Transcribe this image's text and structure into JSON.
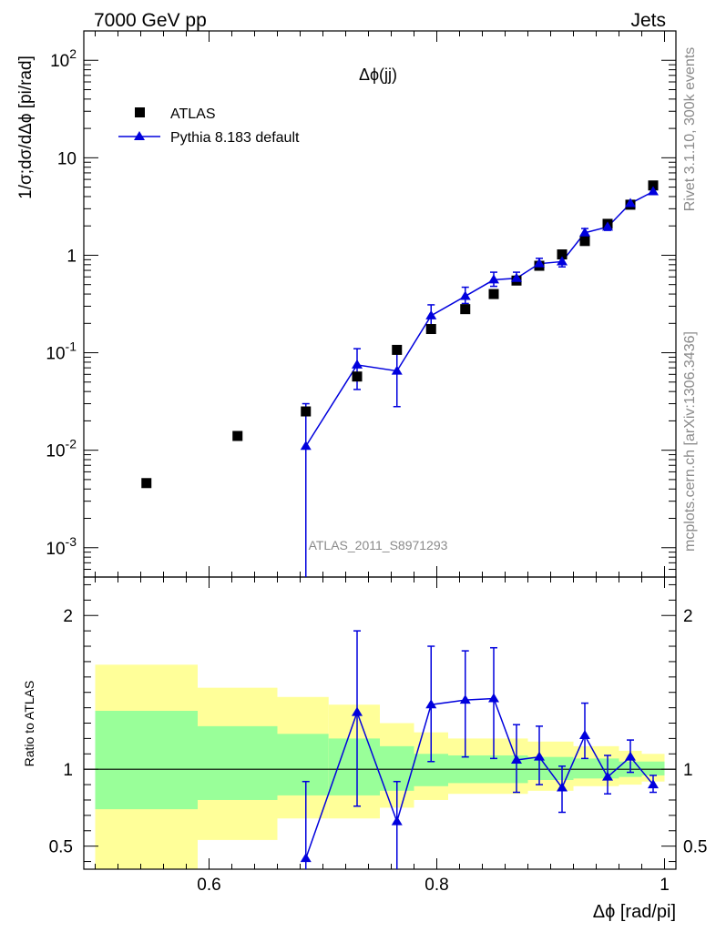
{
  "header": {
    "left": "7000 GeV pp",
    "right": "Jets"
  },
  "side_labels": {
    "rivet": "Rivet 3.1.10,  300k events",
    "mcplots": "mcplots.cern.ch [arXiv:1306.3436]"
  },
  "chart_data": [
    {
      "type": "scatter",
      "title": "Δϕ(jj)",
      "watermark": "ATLAS_2011_S8971293",
      "xlabel": "Δϕ [rad/pi]",
      "ylabel": "1/σ;dσ/dΔϕ [pi/rad]",
      "yscale": "log",
      "xlim": [
        0.49,
        1.01
      ],
      "ylim": [
        0.0005,
        200
      ],
      "ytick_labels": [
        "10^-3",
        "10^-2",
        "10^-1",
        "1",
        "10",
        "10^2"
      ],
      "legend": [
        "ATLAS",
        "Pythia 8.183 default"
      ],
      "series": [
        {
          "name": "ATLAS",
          "x": [
            0.545,
            0.625,
            0.685,
            0.73,
            0.765,
            0.795,
            0.825,
            0.85,
            0.87,
            0.89,
            0.91,
            0.93,
            0.95,
            0.97,
            0.99
          ],
          "y": [
            0.0046,
            0.014,
            0.025,
            0.057,
            0.107,
            0.175,
            0.28,
            0.4,
            0.55,
            0.78,
            1.02,
            1.4,
            2.1,
            3.3,
            5.2
          ]
        },
        {
          "name": "Pythia 8.183 default",
          "x": [
            0.685,
            0.73,
            0.765,
            0.795,
            0.825,
            0.85,
            0.87,
            0.89,
            0.91,
            0.93,
            0.95,
            0.97,
            0.99
          ],
          "y": [
            0.011,
            0.075,
            0.065,
            0.24,
            0.38,
            0.56,
            0.58,
            0.82,
            0.86,
            1.7,
            1.95,
            3.4,
            4.5
          ],
          "y_low": [
            0.0003,
            0.042,
            0.028,
            0.19,
            0.32,
            0.48,
            0.5,
            0.72,
            0.76,
            1.55,
            1.8,
            3.2,
            4.3
          ],
          "y_high": [
            0.03,
            0.11,
            0.1,
            0.31,
            0.47,
            0.67,
            0.67,
            0.93,
            0.97,
            1.88,
            2.15,
            3.65,
            4.75
          ]
        }
      ]
    },
    {
      "type": "scatter",
      "title": "",
      "xlabel": "Δϕ [rad/pi]",
      "ylabel": "Ratio to ATLAS",
      "xlim": [
        0.49,
        1.01
      ],
      "ylim": [
        0.35,
        2.25
      ],
      "xtick_labels": [
        "0.6",
        "0.8",
        "1"
      ],
      "ytick_labels": [
        "0.5",
        "1",
        "2"
      ],
      "bands": [
        {
          "x0": 0.5,
          "x1": 0.59,
          "yellow": [
            0.3,
            1.68
          ],
          "green": [
            0.74,
            1.38
          ]
        },
        {
          "x0": 0.59,
          "x1": 0.66,
          "yellow": [
            0.54,
            1.53
          ],
          "green": [
            0.8,
            1.28
          ]
        },
        {
          "x0": 0.66,
          "x1": 0.705,
          "yellow": [
            0.68,
            1.47
          ],
          "green": [
            0.83,
            1.23
          ]
        },
        {
          "x0": 0.705,
          "x1": 0.75,
          "yellow": [
            0.68,
            1.42
          ],
          "green": [
            0.83,
            1.2
          ]
        },
        {
          "x0": 0.75,
          "x1": 0.78,
          "yellow": [
            0.75,
            1.3
          ],
          "green": [
            0.86,
            1.15
          ]
        },
        {
          "x0": 0.78,
          "x1": 0.81,
          "yellow": [
            0.8,
            1.24
          ],
          "green": [
            0.89,
            1.1
          ]
        },
        {
          "x0": 0.81,
          "x1": 0.88,
          "yellow": [
            0.84,
            1.2
          ],
          "green": [
            0.91,
            1.09
          ]
        },
        {
          "x0": 0.88,
          "x1": 0.92,
          "yellow": [
            0.86,
            1.18
          ],
          "green": [
            0.93,
            1.08
          ]
        },
        {
          "x0": 0.92,
          "x1": 0.96,
          "yellow": [
            0.89,
            1.15
          ],
          "green": [
            0.94,
            1.07
          ]
        },
        {
          "x0": 0.96,
          "x1": 0.98,
          "yellow": [
            0.9,
            1.12
          ],
          "green": [
            0.95,
            1.05
          ]
        },
        {
          "x0": 0.98,
          "x1": 1.0,
          "yellow": [
            0.92,
            1.1
          ],
          "green": [
            0.96,
            1.05
          ]
        }
      ],
      "series": [
        {
          "name": "Pythia 8.183 default",
          "x": [
            0.685,
            0.73,
            0.765,
            0.795,
            0.825,
            0.85,
            0.87,
            0.89,
            0.91,
            0.93,
            0.95,
            0.97,
            0.99
          ],
          "y": [
            0.42,
            1.37,
            0.66,
            1.42,
            1.45,
            1.46,
            1.06,
            1.08,
            0.88,
            1.22,
            0.95,
            1.08,
            0.9
          ],
          "y_low": [
            0.35,
            0.76,
            0.35,
            1.05,
            1.08,
            1.07,
            0.85,
            0.9,
            0.72,
            1.07,
            0.84,
            0.98,
            0.85
          ],
          "y_high": [
            0.92,
            1.9,
            0.92,
            1.8,
            1.77,
            1.79,
            1.29,
            1.28,
            1.02,
            1.43,
            1.09,
            1.19,
            0.96
          ]
        }
      ]
    }
  ]
}
